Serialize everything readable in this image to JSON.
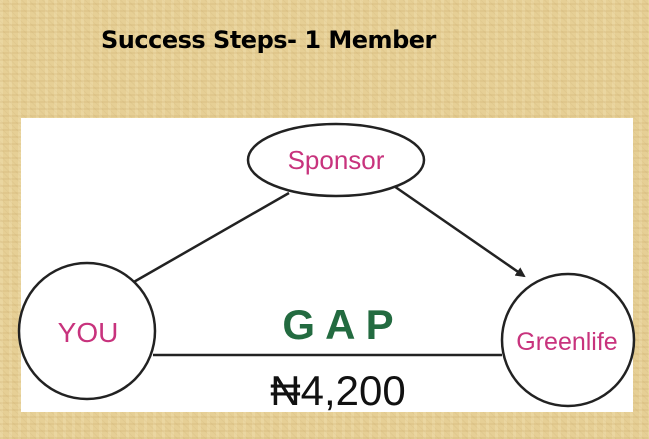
{
  "title": "Success Steps- 1 Member",
  "diagram": {
    "nodes": {
      "sponsor": "Sponsor",
      "you": "YOU",
      "greenlife": "Greenlife"
    },
    "gap_label": "G A P",
    "amount": "₦4,200"
  },
  "colors": {
    "node_text": "#c8337d",
    "gap_text": "#236b40",
    "lines": "#222222"
  }
}
